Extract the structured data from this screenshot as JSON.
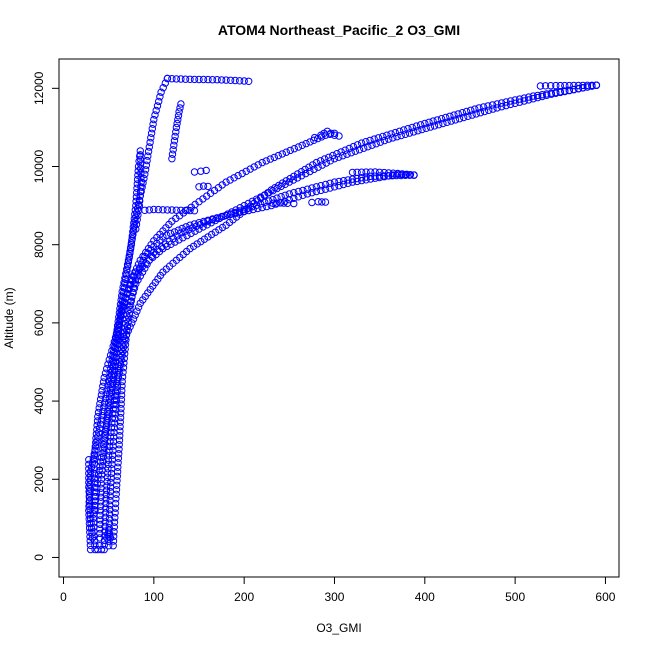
{
  "chart_data": {
    "type": "scatter",
    "title": "ATOM4 Northeast_Pacific_2 O3_GMI",
    "xlabel": "O3_GMI",
    "ylabel": "Altitude (m)",
    "xlim": [
      -5,
      615
    ],
    "ylim": [
      -500,
      12750
    ],
    "xticks": [
      0,
      100,
      200,
      300,
      400,
      500,
      600
    ],
    "yticks": [
      0,
      2000,
      4000,
      6000,
      8000,
      10000,
      12000
    ],
    "grid": false,
    "legend": "none",
    "marker": "open-circle",
    "color": "#0000ff",
    "profiles": [
      [
        [
          35,
          200
        ],
        [
          33,
          1000
        ],
        [
          38,
          2000
        ],
        [
          45,
          3000
        ],
        [
          52,
          4000
        ],
        [
          58,
          5000
        ],
        [
          62,
          6000
        ],
        [
          68,
          7000
        ],
        [
          75,
          8000
        ],
        [
          80,
          9000
        ],
        [
          83,
          10000
        ],
        [
          85,
          10400
        ]
      ],
      [
        [
          30,
          200
        ],
        [
          28,
          1200
        ],
        [
          30,
          2200
        ],
        [
          40,
          3300
        ],
        [
          50,
          4500
        ],
        [
          58,
          5600
        ],
        [
          65,
          6800
        ],
        [
          72,
          7600
        ],
        [
          80,
          8700
        ],
        [
          90,
          9800
        ],
        [
          100,
          11200
        ],
        [
          108,
          11900
        ],
        [
          115,
          12250
        ]
      ],
      [
        [
          115,
          12250
        ],
        [
          140,
          12230
        ],
        [
          170,
          12220
        ],
        [
          190,
          12200
        ],
        [
          205,
          12180
        ]
      ],
      [
        [
          45,
          200
        ],
        [
          47,
          1500
        ],
        [
          50,
          2600
        ],
        [
          55,
          3800
        ],
        [
          62,
          5000
        ],
        [
          70,
          6200
        ],
        [
          80,
          7000
        ],
        [
          100,
          7800
        ],
        [
          130,
          8300
        ],
        [
          160,
          8600
        ],
        [
          200,
          8900
        ],
        [
          250,
          9300
        ],
        [
          300,
          9600
        ],
        [
          340,
          9750
        ],
        [
          388,
          9780
        ]
      ],
      [
        [
          55,
          300
        ],
        [
          58,
          1500
        ],
        [
          62,
          3000
        ],
        [
          65,
          4500
        ],
        [
          70,
          5800
        ],
        [
          78,
          7000
        ],
        [
          90,
          7700
        ],
        [
          110,
          8200
        ],
        [
          140,
          8500
        ],
        [
          180,
          8750
        ],
        [
          230,
          9000
        ],
        [
          270,
          9300
        ],
        [
          320,
          9600
        ],
        [
          370,
          9800
        ],
        [
          388,
          9780
        ]
      ],
      [
        [
          40,
          500
        ],
        [
          42,
          2000
        ],
        [
          48,
          3500
        ],
        [
          55,
          5000
        ],
        [
          65,
          6400
        ],
        [
          80,
          7300
        ],
        [
          110,
          7900
        ],
        [
          150,
          8400
        ],
        [
          200,
          9000
        ],
        [
          250,
          9600
        ],
        [
          300,
          10200
        ],
        [
          360,
          10700
        ],
        [
          420,
          11100
        ],
        [
          480,
          11500
        ],
        [
          540,
          11850
        ],
        [
          590,
          12080
        ]
      ],
      [
        [
          50,
          300
        ],
        [
          52,
          1800
        ],
        [
          56,
          3200
        ],
        [
          60,
          4500
        ],
        [
          68,
          5600
        ],
        [
          85,
          6500
        ],
        [
          110,
          7300
        ],
        [
          140,
          7900
        ],
        [
          180,
          8500
        ],
        [
          230,
          9400
        ],
        [
          280,
          10100
        ],
        [
          330,
          10600
        ],
        [
          400,
          11100
        ],
        [
          460,
          11500
        ],
        [
          520,
          11800
        ],
        [
          560,
          11950
        ],
        [
          590,
          12080
        ]
      ],
      [
        [
          528,
          12060
        ],
        [
          545,
          12070
        ],
        [
          560,
          12070
        ],
        [
          575,
          12075
        ],
        [
          590,
          12080
        ]
      ],
      [
        [
          35,
          1200
        ],
        [
          34,
          2500
        ],
        [
          38,
          3600
        ],
        [
          45,
          4600
        ],
        [
          55,
          5400
        ],
        [
          65,
          6300
        ],
        [
          75,
          7100
        ],
        [
          85,
          7600
        ],
        [
          100,
          8100
        ],
        [
          120,
          8600
        ],
        [
          150,
          9100
        ],
        [
          180,
          9600
        ],
        [
          220,
          10100
        ],
        [
          260,
          10500
        ],
        [
          290,
          10800
        ],
        [
          300,
          10850
        ]
      ],
      [
        [
          28,
          2500
        ],
        [
          28,
          1800
        ],
        [
          30,
          1000
        ],
        [
          32,
          500
        ]
      ],
      [
        [
          120,
          10200
        ],
        [
          125,
          11000
        ],
        [
          128,
          11400
        ],
        [
          130,
          11600
        ]
      ],
      [
        [
          90,
          8880
        ],
        [
          100,
          8900
        ],
        [
          115,
          8890
        ],
        [
          130,
          8880
        ],
        [
          145,
          8870
        ]
      ],
      [
        [
          145,
          9860
        ],
        [
          152,
          9880
        ],
        [
          158,
          9900
        ]
      ],
      [
        [
          150,
          9480
        ],
        [
          155,
          9500
        ],
        [
          160,
          9490
        ]
      ],
      [
        [
          232,
          9060
        ],
        [
          240,
          9070
        ],
        [
          248,
          9060
        ],
        [
          255,
          9050
        ]
      ],
      [
        [
          275,
          9080
        ],
        [
          282,
          9100
        ],
        [
          290,
          9090
        ]
      ],
      [
        [
          278,
          10740
        ],
        [
          285,
          10800
        ],
        [
          292,
          10900
        ],
        [
          300,
          10800
        ],
        [
          305,
          10780
        ]
      ],
      [
        [
          320,
          9850
        ],
        [
          345,
          9860
        ],
        [
          365,
          9830
        ],
        [
          380,
          9800
        ],
        [
          388,
          9780
        ]
      ],
      [
        [
          80,
          8400
        ],
        [
          84,
          9000
        ],
        [
          86,
          9600
        ],
        [
          85,
          10300
        ]
      ],
      [
        [
          38,
          200
        ],
        [
          40,
          300
        ],
        [
          42,
          200
        ]
      ],
      [
        [
          48,
          500
        ],
        [
          50,
          700
        ],
        [
          52,
          500
        ]
      ]
    ]
  }
}
